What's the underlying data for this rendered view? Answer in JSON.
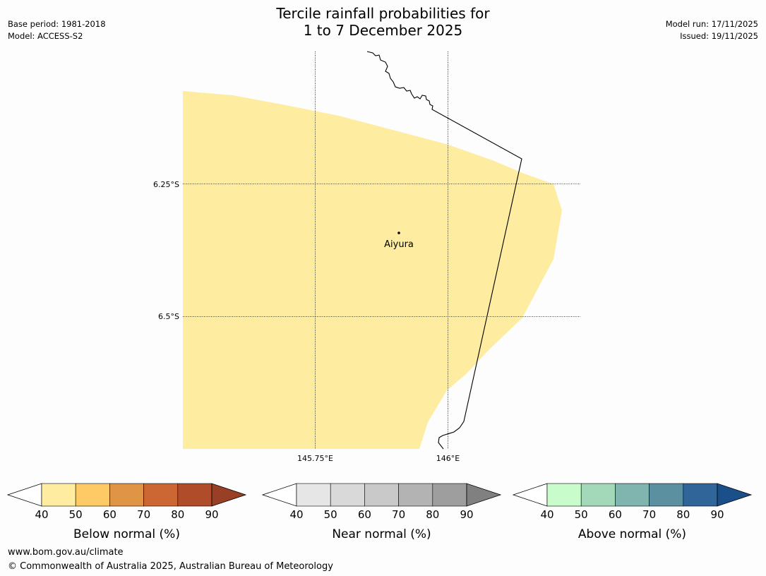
{
  "header": {
    "title_line1": "Tercile rainfall probabilities for",
    "title_line2": "1 to 7 December 2025",
    "base_period": "Base period: 1981-2018",
    "model": "Model: ACCESS-S2",
    "model_run": "Model run: 17/11/2025",
    "issued": "Issued: 19/11/2025"
  },
  "map": {
    "lat_labels": [
      "6.25°S",
      "6.5°S"
    ],
    "lon_labels": [
      "145.75°E",
      "146°E"
    ],
    "place_name": "Aiyura",
    "shade_color": "#feeca1",
    "coastline_color": "#000000"
  },
  "legends": [
    {
      "label": "Below normal (%)",
      "ticks": [
        "40",
        "50",
        "60",
        "70",
        "80",
        "90"
      ],
      "colors": [
        "#ffffff",
        "#feeca1",
        "#fdca66",
        "#e09446",
        "#cc6633",
        "#b04c29",
        "#983f25"
      ]
    },
    {
      "label": "Near normal (%)",
      "ticks": [
        "40",
        "50",
        "60",
        "70",
        "80",
        "90"
      ],
      "colors": [
        "#ffffff",
        "#e6e6e6",
        "#d9d9d9",
        "#c9c9c9",
        "#b3b3b3",
        "#9e9e9e",
        "#808080"
      ]
    },
    {
      "label": "Above normal (%)",
      "ticks": [
        "40",
        "50",
        "60",
        "70",
        "80",
        "90"
      ],
      "colors": [
        "#ffffff",
        "#c8fcca",
        "#a3d9b9",
        "#7fb5ae",
        "#5a90a0",
        "#306599",
        "#1b4f8a"
      ]
    }
  ],
  "footer": {
    "url": "www.bom.gov.au/climate",
    "copyright": "© Commonwealth of Australia 2025, Australian Bureau of Meteorology"
  }
}
